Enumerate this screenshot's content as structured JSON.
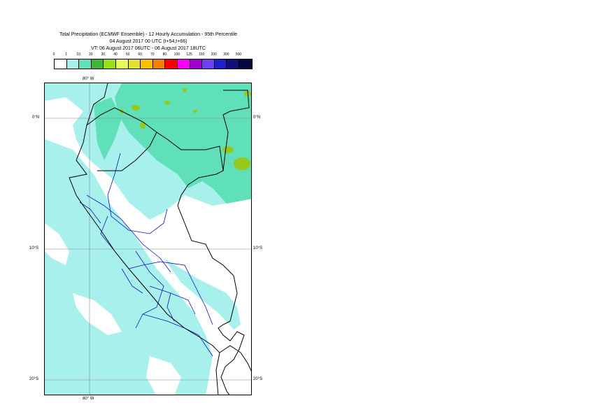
{
  "header": {
    "title_line1": "Total Precipitation (ECMWF Ensemble) - 12 Hourly Accumulation - 95th Percentile",
    "title_line2": "04 August 2017 00 UTC (t+54,t+66)",
    "title_line3": "VT: 06 August 2017 06UTC - 06 August 2017 18UTC"
  },
  "legend": {
    "ticks": [
      "0",
      "1",
      "10",
      "20",
      "30",
      "40",
      "50",
      "60",
      "70",
      "80",
      "100",
      "125",
      "150",
      "200",
      "300",
      "500"
    ],
    "colors": [
      "#ffffff",
      "#a8f0ec",
      "#5fe0b8",
      "#3cb83a",
      "#98e01a",
      "#e8f860",
      "#e0e030",
      "#f8c000",
      "#f88000",
      "#f80000",
      "#f800f8",
      "#a000d0",
      "#7040f0",
      "#2020c8",
      "#101078",
      "#080840"
    ]
  },
  "map": {
    "lon_labels": [
      "80° W",
      "80° W"
    ],
    "lat_labels": {
      "left": [
        "0°N",
        "10°S",
        "20°S"
      ],
      "right": [
        "0°N",
        "10°S",
        "20°S"
      ]
    },
    "colors": {
      "light_precip": "#a8f0ec",
      "medium_precip": "#5fe0b8",
      "heavy_precip": "#98c81a",
      "coast": "#000000",
      "admin": "#1010c0",
      "grid": "#888888"
    }
  }
}
